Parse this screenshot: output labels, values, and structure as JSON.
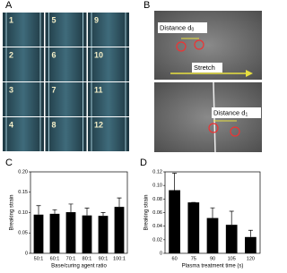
{
  "panels": [
    "A",
    "B",
    "C",
    "D"
  ],
  "panel_a": {
    "frames": [
      "1",
      "2",
      "3",
      "4",
      "5",
      "6",
      "7",
      "8",
      "9",
      "10",
      "11",
      "12"
    ]
  },
  "panel_b": {
    "top_label": {
      "text": "Distance d",
      "sub": "0"
    },
    "arrow_label": "Stretch",
    "bottom_label": {
      "text": "Distance d",
      "sub": "1"
    }
  },
  "chart_data": [
    {
      "type": "bar",
      "ylabel": "Breaking strain",
      "xlabel": "Base/curing agent ratio",
      "categories": [
        "50:1",
        "60:1",
        "70:1",
        "80:1",
        "90:1",
        "100:1"
      ],
      "values": [
        0.095,
        0.097,
        0.101,
        0.093,
        0.092,
        0.114
      ],
      "errors": [
        0.022,
        0.01,
        0.02,
        0.018,
        0.008,
        0.022
      ],
      "color": "#000000",
      "ylim": [
        0,
        0.2
      ],
      "yticks": [
        0,
        0.05,
        {
          "value": 0.1,
          "label": "0.10"
        },
        0.15,
        {
          "value": 0.2,
          "label": "0.20"
        }
      ]
    },
    {
      "type": "bar",
      "ylabel": "Breaking strain",
      "xlabel": "Plasma treatment time (s)",
      "categories": [
        "60",
        "75",
        "90",
        "105",
        "120"
      ],
      "values": [
        0.093,
        0.075,
        0.052,
        0.042,
        0.024
      ],
      "errors": [
        0.025,
        0,
        0.015,
        0.02,
        0.01
      ],
      "color": "#000000",
      "ylim": [
        0,
        0.12
      ],
      "yticks": [
        0,
        0.02,
        0.04,
        0.06,
        0.08,
        {
          "value": 0.1,
          "label": "0.10"
        },
        0.12
      ]
    }
  ]
}
